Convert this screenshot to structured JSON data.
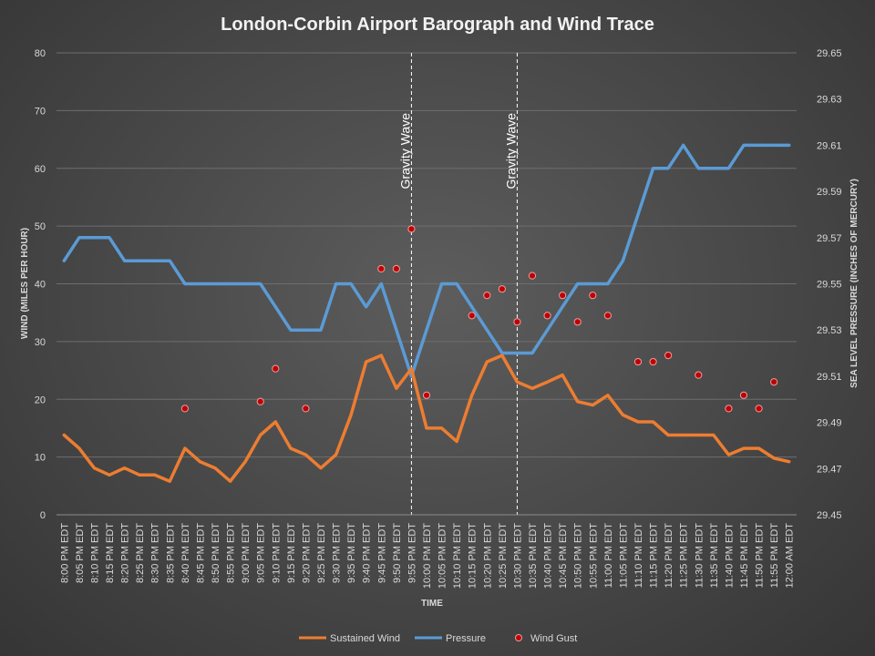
{
  "chart_data": {
    "type": "line",
    "title": "London-Corbin Airport Barograph and Wind Trace",
    "xlabel": "TIME",
    "ylabel_left": "WIND (MILES PER HOUR)",
    "ylabel_right": "SEA LEVEL PRESSURE (INCHES OF MERCURY)",
    "ylim_left": [
      0,
      80
    ],
    "ylim_right": [
      29.45,
      29.65
    ],
    "yticks_left": [
      "0",
      "10",
      "20",
      "30",
      "40",
      "50",
      "60",
      "70",
      "80"
    ],
    "yticks_right": [
      "29.45",
      "29.47",
      "29.49",
      "29.51",
      "29.53",
      "29.55",
      "29.57",
      "29.59",
      "29.61",
      "29.63",
      "29.65"
    ],
    "grid": true,
    "legend_position": "bottom",
    "categories": [
      "8:00 PM EDT",
      "8:05 PM EDT",
      "8:10 PM EDT",
      "8:15 PM EDT",
      "8:20 PM EDT",
      "8:25 PM EDT",
      "8:30 PM EDT",
      "8:35 PM EDT",
      "8:40 PM EDT",
      "8:45 PM EDT",
      "8:50 PM EDT",
      "8:55 PM EDT",
      "9:00 PM EDT",
      "9:05 PM EDT",
      "9:10 PM EDT",
      "9:15 PM EDT",
      "9:20 PM EDT",
      "9:25 PM EDT",
      "9:30 PM EDT",
      "9:35 PM EDT",
      "9:40 PM EDT",
      "9:45 PM EDT",
      "9:50 PM EDT",
      "9:55 PM EDT",
      "10:00 PM EDT",
      "10:05 PM EDT",
      "10:10 PM EDT",
      "10:15 PM EDT",
      "10:20 PM EDT",
      "10:25 PM EDT",
      "10:30 PM EDT",
      "10:35 PM EDT",
      "10:40 PM EDT",
      "10:45 PM EDT",
      "10:50 PM EDT",
      "10:55 PM EDT",
      "11:00 PM EDT",
      "11:05 PM EDT",
      "11:10 PM EDT",
      "11:15 PM EDT",
      "11:20 PM EDT",
      "11:25 PM EDT",
      "11:30 PM EDT",
      "11:35 PM EDT",
      "11:40 PM EDT",
      "11:45 PM EDT",
      "11:50 PM EDT",
      "11:55 PM EDT",
      "12:00 AM EDT"
    ],
    "series": [
      {
        "name": "Sustained Wind",
        "axis": "left",
        "color": "#ed7d31",
        "values": [
          13.8,
          11.5,
          8.1,
          6.9,
          8.1,
          6.9,
          6.9,
          5.8,
          11.5,
          9.2,
          8.1,
          5.8,
          9.2,
          13.8,
          16.1,
          11.5,
          10.4,
          8.1,
          10.4,
          17.3,
          26.5,
          27.6,
          21.9,
          25.3,
          15.0,
          15.0,
          12.7,
          20.7,
          26.5,
          27.6,
          23.0,
          21.9,
          23.0,
          24.2,
          19.6,
          19.0,
          20.7,
          17.3,
          16.1,
          16.1,
          13.8,
          13.8,
          13.8,
          13.8,
          10.4,
          11.5,
          11.5,
          9.8,
          9.2
        ]
      },
      {
        "name": "Pressure",
        "axis": "right",
        "color": "#5b9bd5",
        "values": [
          29.56,
          29.57,
          29.57,
          29.57,
          29.56,
          29.56,
          29.56,
          29.56,
          29.55,
          29.55,
          29.55,
          29.55,
          29.55,
          29.55,
          29.54,
          29.53,
          29.53,
          29.53,
          29.55,
          29.55,
          29.54,
          29.55,
          29.53,
          29.51,
          29.53,
          29.55,
          29.55,
          29.54,
          29.53,
          29.52,
          29.52,
          29.52,
          29.53,
          29.54,
          29.55,
          29.55,
          29.55,
          29.56,
          29.58,
          29.6,
          29.6,
          29.61,
          29.6,
          29.6,
          29.6,
          29.61,
          29.61,
          29.61,
          29.61
        ]
      },
      {
        "name": "Wind Gust",
        "axis": "left",
        "color": "#c00000",
        "values": [
          null,
          null,
          null,
          null,
          null,
          null,
          null,
          null,
          18.4,
          null,
          null,
          null,
          null,
          19.6,
          25.3,
          null,
          18.4,
          null,
          null,
          null,
          null,
          42.6,
          42.6,
          49.5,
          20.7,
          null,
          null,
          34.5,
          38.0,
          39.1,
          33.4,
          41.4,
          34.5,
          38.0,
          33.4,
          38.0,
          34.5,
          null,
          26.5,
          26.5,
          27.6,
          null,
          24.2,
          null,
          18.4,
          20.7,
          18.4,
          23.0,
          null
        ]
      }
    ],
    "annotations": [
      {
        "category": "9:55 PM EDT",
        "text": "Gravity Wave"
      },
      {
        "category": "10:30 PM EDT",
        "text": "Gravity Wave"
      }
    ]
  }
}
